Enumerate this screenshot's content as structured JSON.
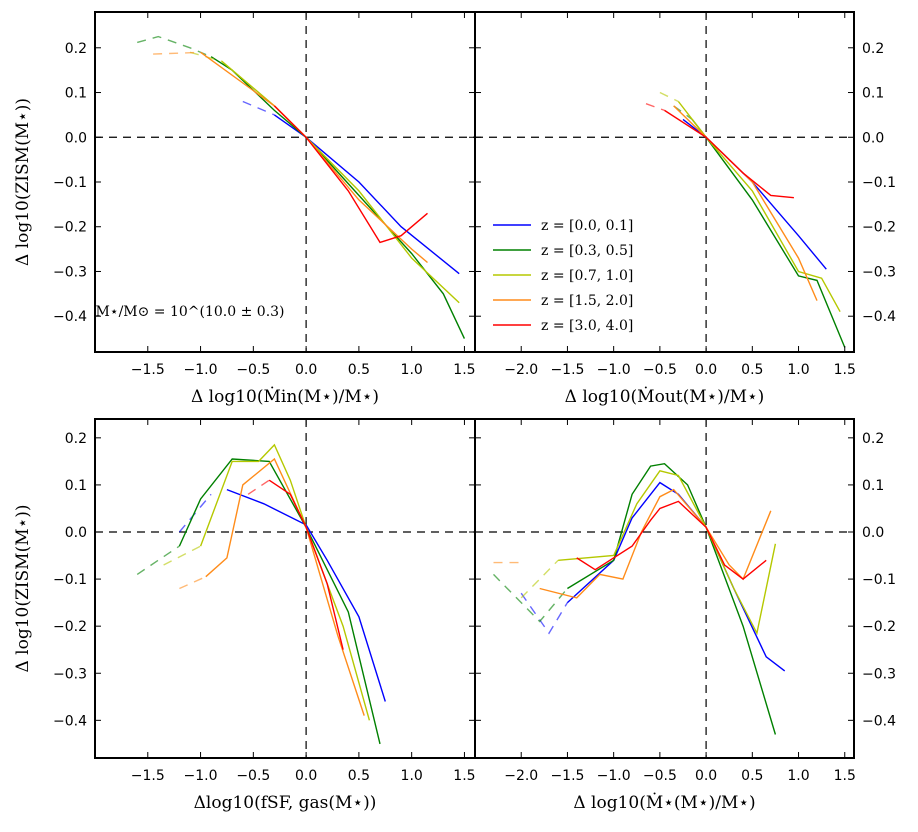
{
  "series_colors": {
    "z0": "#0000ff",
    "z1": "#008000",
    "z2": "#b5c800",
    "z3": "#ff8c1a",
    "z4": "#ff0000"
  },
  "chart_data": [
    {
      "type": "line",
      "panel": "top-left",
      "xlabel": "Δ log10(Ṁin(M⋆)/M⋆)",
      "ylabel": "Δ log10(ZISM(M⋆))",
      "xlim": [
        -2.0,
        1.6
      ],
      "ylim": [
        -0.48,
        0.28
      ],
      "xticks": [
        -1.5,
        -1.0,
        -0.5,
        0.0,
        0.5,
        1.0,
        1.5
      ],
      "xtick_labels": [
        "−1.5",
        "−1.0",
        "−0.5",
        "0.0",
        "0.5",
        "1.0",
        "1.5"
      ],
      "yticks": [
        -0.4,
        -0.3,
        -0.2,
        -0.1,
        0.0,
        0.1,
        0.2
      ],
      "ytick_labels": [
        "−0.4",
        "−0.3",
        "−0.2",
        "−0.1",
        "0.0",
        "0.1",
        "0.2"
      ],
      "ytick_side": "left",
      "annotation": "M⋆/M⊙ = 10^(10.0 ± 0.3)",
      "series": [
        {
          "name": "z = [0.0, 0.1]",
          "color_key": "z0",
          "dashed": [
            [
              -0.6,
              0.08
            ],
            [
              -0.3,
              0.05
            ]
          ],
          "solid": [
            [
              -0.3,
              0.05
            ],
            [
              0.0,
              0.0
            ],
            [
              0.5,
              -0.1
            ],
            [
              0.9,
              -0.2
            ],
            [
              1.45,
              -0.305
            ]
          ]
        },
        {
          "name": "z = [0.3, 0.5]",
          "color_key": "z1",
          "dashed": [
            [
              -1.6,
              0.212
            ],
            [
              -1.4,
              0.225
            ],
            [
              -1.1,
              0.2
            ],
            [
              -0.9,
              0.18
            ]
          ],
          "solid": [
            [
              -0.9,
              0.18
            ],
            [
              -0.7,
              0.15
            ],
            [
              -0.3,
              0.06
            ],
            [
              0.0,
              0.0
            ],
            [
              0.5,
              -0.13
            ],
            [
              1.0,
              -0.26
            ],
            [
              1.3,
              -0.35
            ],
            [
              1.5,
              -0.45
            ]
          ]
        },
        {
          "name": "z = [0.7, 1.0]",
          "color_key": "z2",
          "dashed": [
            [
              -1.1,
              0.19
            ],
            [
              -0.8,
              0.17
            ]
          ],
          "solid": [
            [
              -0.8,
              0.17
            ],
            [
              -0.3,
              0.07
            ],
            [
              0.0,
              0.0
            ],
            [
              0.5,
              -0.12
            ],
            [
              1.0,
              -0.27
            ],
            [
              1.45,
              -0.37
            ]
          ]
        },
        {
          "name": "z = [1.5, 2.0]",
          "color_key": "z3",
          "dashed": [
            [
              -1.45,
              0.186
            ],
            [
              -1.0,
              0.19
            ]
          ],
          "solid": [
            [
              -1.0,
              0.19
            ],
            [
              -0.3,
              0.07
            ],
            [
              0.0,
              0.0
            ],
            [
              0.5,
              -0.14
            ],
            [
              1.0,
              -0.25
            ],
            [
              1.15,
              -0.28
            ]
          ]
        },
        {
          "name": "z = [3.0, 4.0]",
          "color_key": "z4",
          "dashed": [],
          "solid": [
            [
              -0.3,
              0.07
            ],
            [
              0.0,
              0.0
            ],
            [
              0.4,
              -0.12
            ],
            [
              0.7,
              -0.235
            ],
            [
              0.9,
              -0.22
            ],
            [
              1.15,
              -0.17
            ]
          ]
        }
      ]
    },
    {
      "type": "line",
      "panel": "top-right",
      "xlabel": "Δ log10(Ṁout(M⋆)/M⋆)",
      "ylabel": "",
      "xlim": [
        -2.5,
        1.6
      ],
      "ylim": [
        -0.48,
        0.28
      ],
      "xticks": [
        -2.0,
        -1.5,
        -1.0,
        -0.5,
        0.0,
        0.5,
        1.0,
        1.5
      ],
      "xtick_labels": [
        "−2.0",
        "−1.5",
        "−1.0",
        "−0.5",
        "0.0",
        "0.5",
        "1.0",
        "1.5"
      ],
      "yticks": [
        -0.4,
        -0.3,
        -0.2,
        -0.1,
        0.0,
        0.1,
        0.2
      ],
      "ytick_labels": [
        "−0.4",
        "−0.3",
        "−0.2",
        "−0.1",
        "0.0",
        "0.1",
        "0.2"
      ],
      "ytick_side": "right",
      "legend_entries": [
        "z = [0.0, 0.1]",
        "z = [0.3, 0.5]",
        "z = [0.7, 1.0]",
        "z = [1.5, 2.0]",
        "z = [3.0, 4.0]"
      ],
      "series": [
        {
          "name": "z = [0.0, 0.1]",
          "color_key": "z0",
          "dashed": [],
          "solid": [
            [
              -0.25,
              0.04
            ],
            [
              0.0,
              0.0
            ],
            [
              0.5,
              -0.1
            ],
            [
              1.0,
              -0.22
            ],
            [
              1.3,
              -0.295
            ]
          ]
        },
        {
          "name": "z = [0.3, 0.5]",
          "color_key": "z1",
          "dashed": [
            [
              -0.35,
              0.07
            ],
            [
              -0.15,
              0.04
            ]
          ],
          "solid": [
            [
              -0.15,
              0.04
            ],
            [
              0.0,
              0.0
            ],
            [
              0.5,
              -0.14
            ],
            [
              1.0,
              -0.31
            ],
            [
              1.2,
              -0.32
            ],
            [
              1.5,
              -0.47
            ]
          ]
        },
        {
          "name": "z = [0.7, 1.0]",
          "color_key": "z2",
          "dashed": [
            [
              -0.5,
              0.1
            ],
            [
              -0.3,
              0.08
            ]
          ],
          "solid": [
            [
              -0.3,
              0.08
            ],
            [
              0.0,
              0.0
            ],
            [
              0.5,
              -0.12
            ],
            [
              1.0,
              -0.3
            ],
            [
              1.25,
              -0.315
            ],
            [
              1.45,
              -0.39
            ]
          ]
        },
        {
          "name": "z = [1.5, 2.0]",
          "color_key": "z3",
          "dashed": [],
          "solid": [
            [
              -0.35,
              0.07
            ],
            [
              0.0,
              0.0
            ],
            [
              0.5,
              -0.1
            ],
            [
              1.0,
              -0.27
            ],
            [
              1.2,
              -0.365
            ]
          ]
        },
        {
          "name": "z = [3.0, 4.0]",
          "color_key": "z4",
          "dashed": [
            [
              -0.65,
              0.075
            ],
            [
              -0.45,
              0.06
            ]
          ],
          "solid": [
            [
              -0.45,
              0.06
            ],
            [
              0.0,
              0.0
            ],
            [
              0.4,
              -0.08
            ],
            [
              0.7,
              -0.13
            ],
            [
              0.95,
              -0.135
            ]
          ]
        }
      ]
    },
    {
      "type": "line",
      "panel": "bottom-left",
      "xlabel": "Δlog10(fSF, gas(M⋆))",
      "ylabel": "Δ log10(ZISM(M⋆))",
      "xlim": [
        -2.0,
        1.6
      ],
      "ylim": [
        -0.48,
        0.24
      ],
      "xticks": [
        -1.5,
        -1.0,
        -0.5,
        0.0,
        0.5,
        1.0,
        1.5
      ],
      "xtick_labels": [
        "−1.5",
        "−1.0",
        "−0.5",
        "0.0",
        "0.5",
        "1.0",
        "1.5"
      ],
      "yticks": [
        -0.4,
        -0.3,
        -0.2,
        -0.1,
        0.0,
        0.1,
        0.2
      ],
      "ytick_labels": [
        "−0.4",
        "−0.3",
        "−0.2",
        "−0.1",
        "0.0",
        "0.1",
        "0.2"
      ],
      "ytick_side": "left",
      "series": [
        {
          "name": "z = [0.0, 0.1]",
          "color_key": "z0",
          "dashed": [
            [
              -1.2,
              0.0
            ],
            [
              -0.9,
              0.08
            ]
          ],
          "solid": [
            [
              -0.75,
              0.09
            ],
            [
              -0.4,
              0.06
            ],
            [
              0.0,
              0.015
            ],
            [
              0.2,
              -0.06
            ],
            [
              0.5,
              -0.18
            ],
            [
              0.75,
              -0.36
            ]
          ]
        },
        {
          "name": "z = [0.3, 0.5]",
          "color_key": "z1",
          "dashed": [
            [
              -1.6,
              -0.09
            ],
            [
              -1.2,
              -0.03
            ]
          ],
          "solid": [
            [
              -1.2,
              -0.03
            ],
            [
              -1.0,
              0.07
            ],
            [
              -0.7,
              0.155
            ],
            [
              -0.35,
              0.15
            ],
            [
              0.0,
              0.01
            ],
            [
              0.4,
              -0.17
            ],
            [
              0.7,
              -0.45
            ]
          ]
        },
        {
          "name": "z = [0.7, 1.0]",
          "color_key": "z2",
          "dashed": [
            [
              -1.35,
              -0.07
            ],
            [
              -1.0,
              -0.03
            ]
          ],
          "solid": [
            [
              -1.0,
              -0.03
            ],
            [
              -0.7,
              0.15
            ],
            [
              -0.45,
              0.15
            ],
            [
              -0.3,
              0.185
            ],
            [
              -0.15,
              0.11
            ],
            [
              0.0,
              0.01
            ],
            [
              0.35,
              -0.2
            ],
            [
              0.6,
              -0.4
            ]
          ]
        },
        {
          "name": "z = [1.5, 2.0]",
          "color_key": "z3",
          "dashed": [
            [
              -1.2,
              -0.12
            ],
            [
              -0.95,
              -0.095
            ]
          ],
          "solid": [
            [
              -0.95,
              -0.095
            ],
            [
              -0.75,
              -0.055
            ],
            [
              -0.6,
              0.1
            ],
            [
              -0.3,
              0.155
            ],
            [
              0.0,
              0.01
            ],
            [
              0.3,
              -0.22
            ],
            [
              0.55,
              -0.39
            ]
          ]
        },
        {
          "name": "z = [3.0, 4.0]",
          "color_key": "z4",
          "dashed": [
            [
              -0.55,
              0.08
            ],
            [
              -0.35,
              0.11
            ]
          ],
          "solid": [
            [
              -0.35,
              0.11
            ],
            [
              -0.15,
              0.08
            ],
            [
              0.0,
              0.01
            ],
            [
              0.2,
              -0.11
            ],
            [
              0.35,
              -0.25
            ]
          ]
        }
      ]
    },
    {
      "type": "line",
      "panel": "bottom-right",
      "xlabel": "Δ log10(Ṁ⋆(M⋆)/M⋆)",
      "ylabel": "",
      "xlim": [
        -2.5,
        1.6
      ],
      "ylim": [
        -0.48,
        0.24
      ],
      "xticks": [
        -2.0,
        -1.5,
        -1.0,
        -0.5,
        0.0,
        0.5,
        1.0,
        1.5
      ],
      "xtick_labels": [
        "−2.0",
        "−1.5",
        "−1.0",
        "−0.5",
        "0.0",
        "0.5",
        "1.0",
        "1.5"
      ],
      "yticks": [
        -0.4,
        -0.3,
        -0.2,
        -0.1,
        0.0,
        0.1,
        0.2
      ],
      "ytick_labels": [
        "−0.4",
        "−0.3",
        "−0.2",
        "−0.1",
        "0.0",
        "0.1",
        "0.2"
      ],
      "ytick_side": "right",
      "series": [
        {
          "name": "z = [0.0, 0.1]",
          "color_key": "z0",
          "dashed": [
            [
              -2.0,
              -0.13
            ],
            [
              -1.7,
              -0.215
            ],
            [
              -1.5,
              -0.15
            ]
          ],
          "solid": [
            [
              -1.5,
              -0.15
            ],
            [
              -1.0,
              -0.06
            ],
            [
              -0.8,
              0.03
            ],
            [
              -0.5,
              0.105
            ],
            [
              -0.3,
              0.08
            ],
            [
              0.0,
              0.01
            ],
            [
              0.3,
              -0.12
            ],
            [
              0.65,
              -0.265
            ],
            [
              0.85,
              -0.295
            ]
          ]
        },
        {
          "name": "z = [0.3, 0.5]",
          "color_key": "z1",
          "dashed": [
            [
              -2.3,
              -0.09
            ],
            [
              -1.8,
              -0.19
            ],
            [
              -1.5,
              -0.12
            ]
          ],
          "solid": [
            [
              -1.5,
              -0.12
            ],
            [
              -1.0,
              -0.06
            ],
            [
              -0.8,
              0.08
            ],
            [
              -0.6,
              0.14
            ],
            [
              -0.45,
              0.145
            ],
            [
              -0.2,
              0.1
            ],
            [
              0.0,
              0.01
            ],
            [
              0.4,
              -0.2
            ],
            [
              0.75,
              -0.43
            ]
          ]
        },
        {
          "name": "z = [0.7, 1.0]",
          "color_key": "z2",
          "dashed": [
            [
              -2.0,
              -0.14
            ],
            [
              -1.6,
              -0.06
            ]
          ],
          "solid": [
            [
              -1.6,
              -0.06
            ],
            [
              -1.0,
              -0.05
            ],
            [
              -0.75,
              0.06
            ],
            [
              -0.5,
              0.13
            ],
            [
              -0.3,
              0.12
            ],
            [
              0.0,
              0.01
            ],
            [
              0.3,
              -0.12
            ],
            [
              0.55,
              -0.215
            ],
            [
              0.75,
              -0.025
            ]
          ]
        },
        {
          "name": "z = [1.5, 2.0]",
          "color_key": "z3",
          "dashed": [
            [
              -2.3,
              -0.065
            ],
            [
              -2.0,
              -0.065
            ]
          ],
          "solid": [
            [
              -1.8,
              -0.12
            ],
            [
              -1.4,
              -0.14
            ],
            [
              -1.15,
              -0.09
            ],
            [
              -0.9,
              -0.1
            ],
            [
              -0.7,
              0.0
            ],
            [
              -0.5,
              0.075
            ],
            [
              -0.35,
              0.09
            ],
            [
              0.0,
              0.01
            ],
            [
              0.25,
              -0.07
            ],
            [
              0.4,
              -0.1
            ],
            [
              0.7,
              0.045
            ]
          ]
        },
        {
          "name": "z = [3.0, 4.0]",
          "color_key": "z4",
          "dashed": [],
          "solid": [
            [
              -1.4,
              -0.055
            ],
            [
              -1.2,
              -0.08
            ],
            [
              -0.8,
              -0.03
            ],
            [
              -0.6,
              0.025
            ],
            [
              -0.5,
              0.05
            ],
            [
              -0.3,
              0.065
            ],
            [
              0.0,
              0.01
            ],
            [
              0.2,
              -0.07
            ],
            [
              0.4,
              -0.1
            ],
            [
              0.65,
              -0.06
            ]
          ]
        }
      ]
    }
  ]
}
